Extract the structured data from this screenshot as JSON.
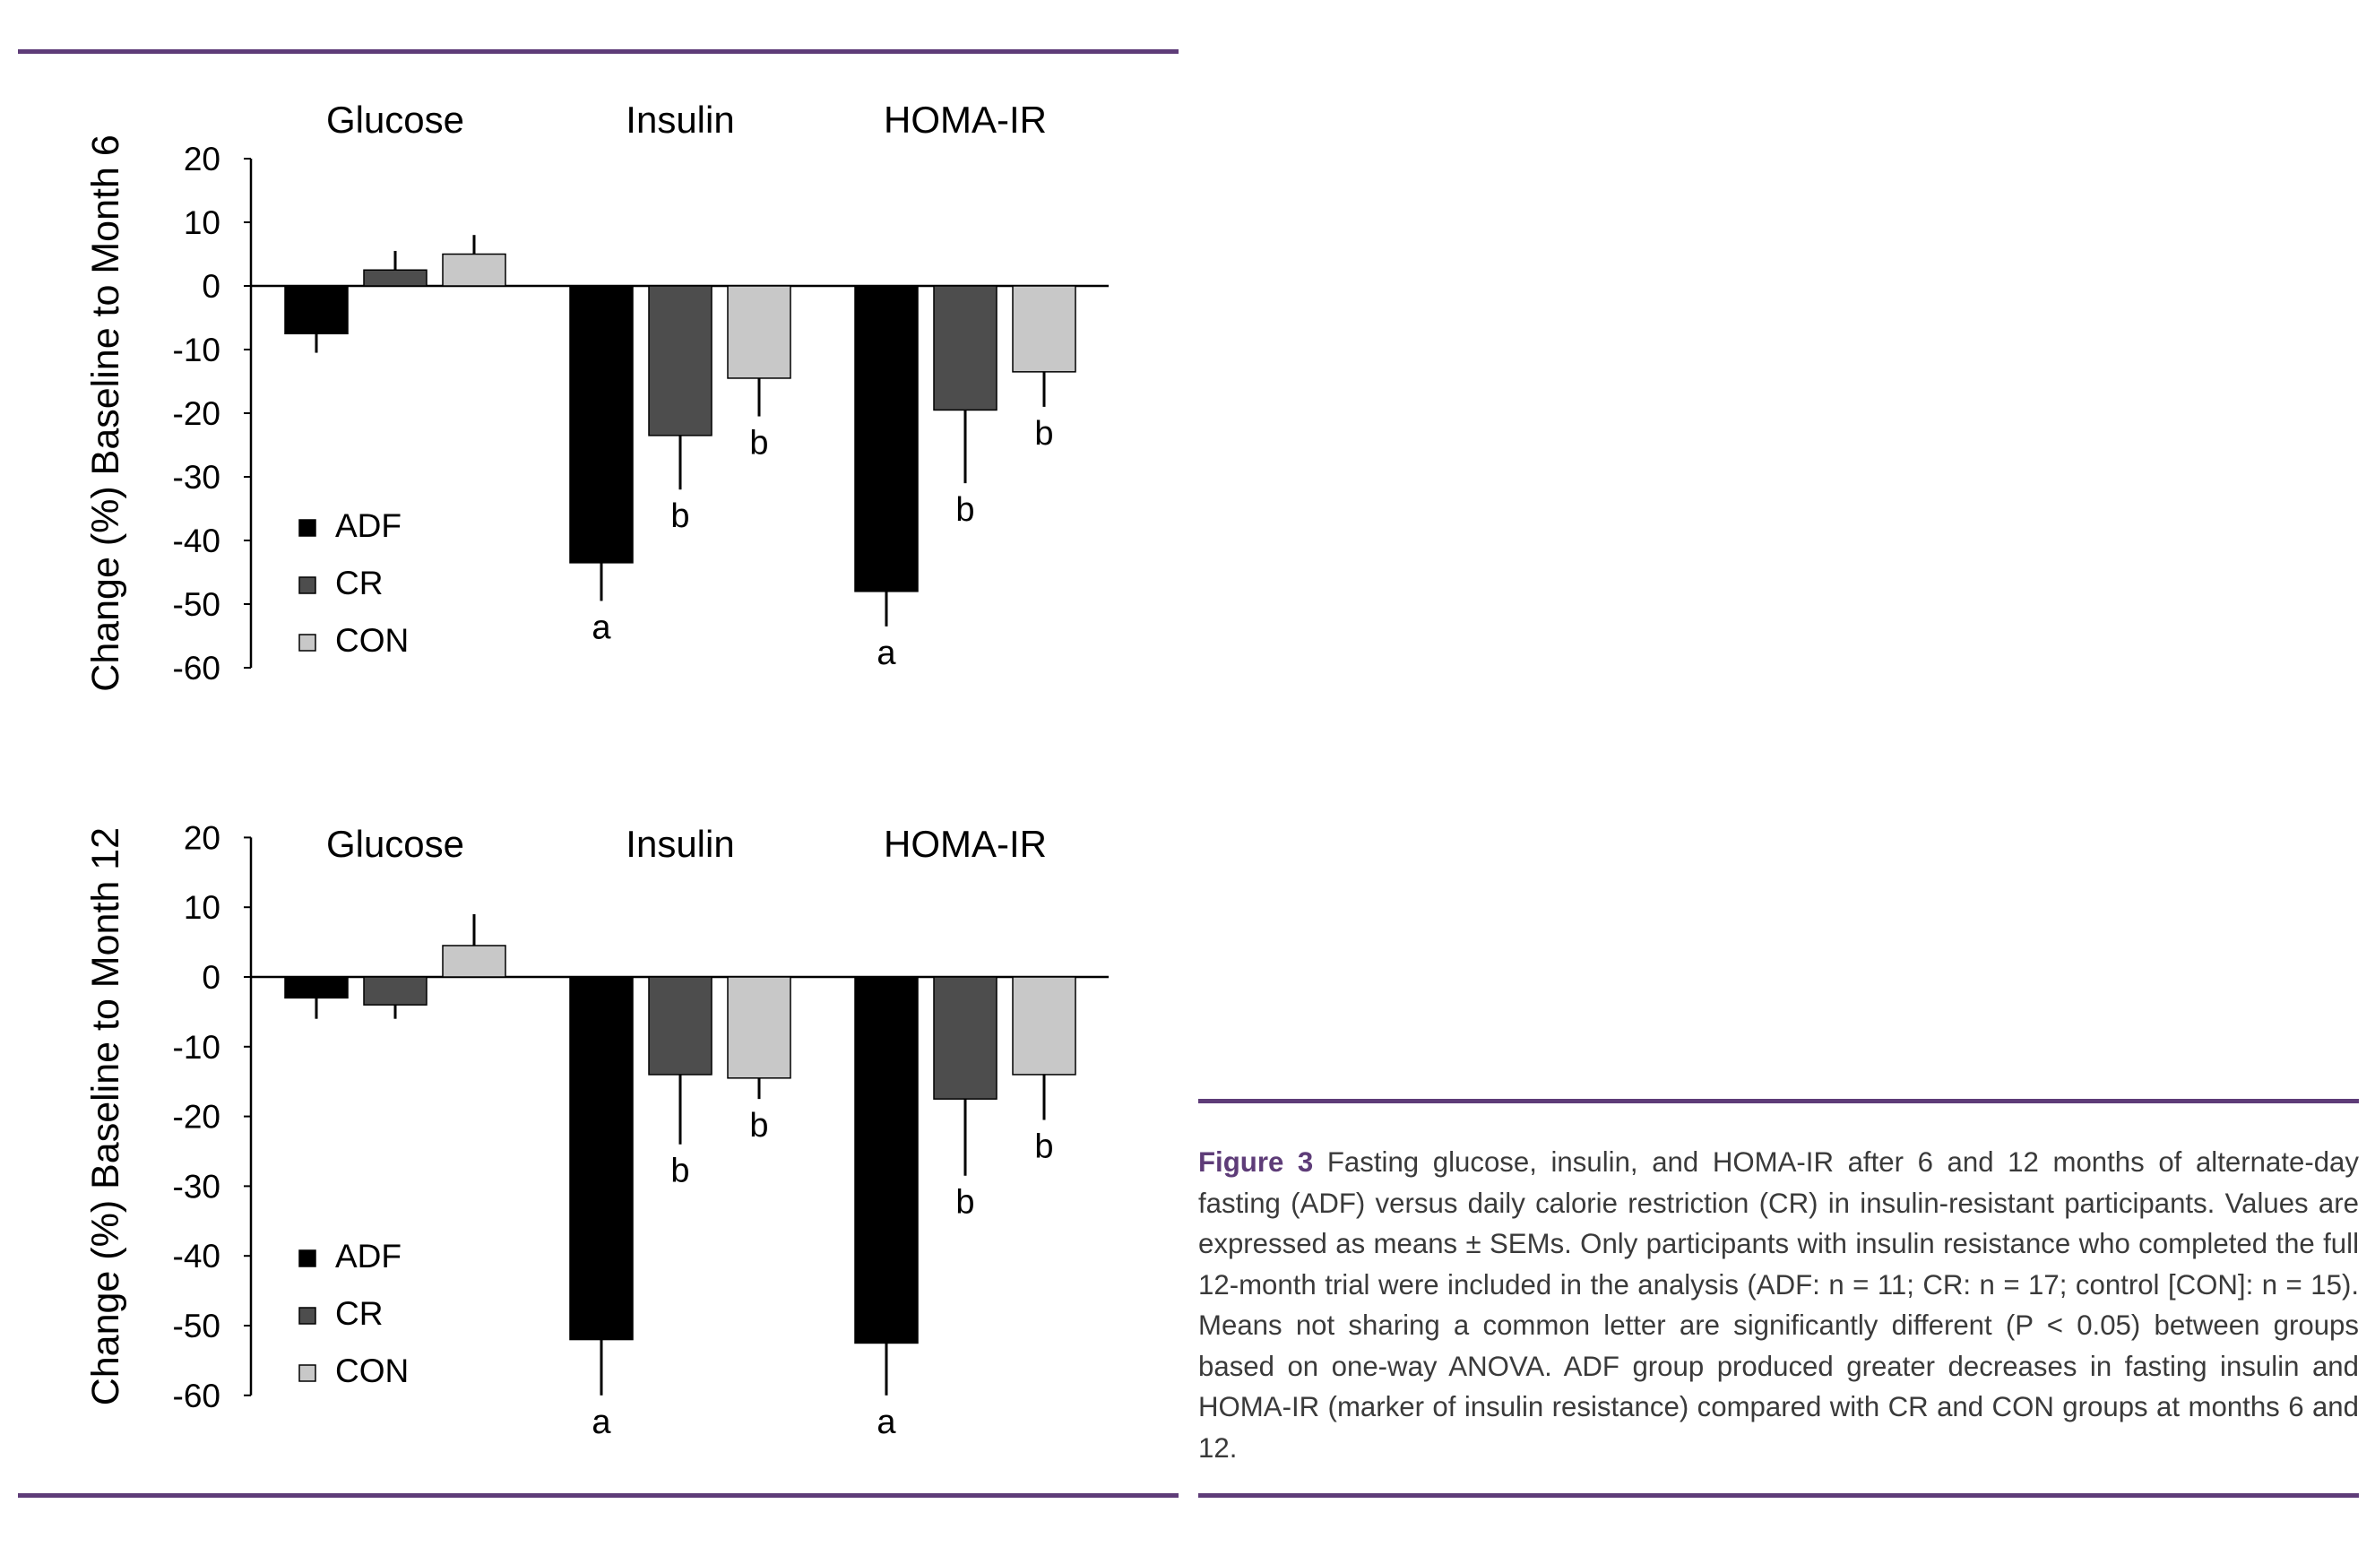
{
  "colors": {
    "rule": "#5e3c78",
    "caption_label": "#5e3c78",
    "caption_text": "#3a3a3a",
    "ADF": "#000000",
    "CR": "#4d4d4d",
    "CON": "#c8c8c8"
  },
  "chart_data": [
    {
      "type": "bar",
      "ylabel": "Change (%) Baseline to Month 6",
      "ylim": [
        -60,
        20
      ],
      "yticks": [
        "20",
        "10",
        "0",
        "-10",
        "-20",
        "-30",
        "-40",
        "-50",
        "-60"
      ],
      "categories": [
        "Glucose",
        "Insulin",
        "HOMA-IR"
      ],
      "legend": {
        "position": "bottom-left"
      },
      "series": [
        {
          "name": "ADF",
          "values": [
            -7.5,
            -43.5,
            -48
          ],
          "sem": [
            3,
            6,
            5.5
          ],
          "letters": [
            "",
            "a",
            "a"
          ]
        },
        {
          "name": "CR",
          "values": [
            2.5,
            -23.5,
            -19.5
          ],
          "sem": [
            3,
            8.5,
            11.5
          ],
          "letters": [
            "",
            "b",
            "b"
          ]
        },
        {
          "name": "CON",
          "values": [
            5,
            -14.5,
            -13.5
          ],
          "sem": [
            3,
            6,
            5.5
          ],
          "letters": [
            "",
            "b",
            "b"
          ]
        }
      ]
    },
    {
      "type": "bar",
      "ylabel": "Change (%) Baseline to Month 12",
      "ylim": [
        -60,
        20
      ],
      "yticks": [
        "20",
        "10",
        "0",
        "-10",
        "-20",
        "-30",
        "-40",
        "-50",
        "-60"
      ],
      "categories": [
        "Glucose",
        "Insulin",
        "HOMA-IR"
      ],
      "legend": {
        "position": "bottom-left"
      },
      "series": [
        {
          "name": "ADF",
          "values": [
            -3,
            -52,
            -52.5
          ],
          "sem": [
            3,
            8,
            7.5
          ],
          "letters": [
            "",
            "a",
            "a"
          ]
        },
        {
          "name": "CR",
          "values": [
            -4,
            -14,
            -17.5
          ],
          "sem": [
            2,
            10,
            11
          ],
          "letters": [
            "",
            "b",
            "b"
          ]
        },
        {
          "name": "CON",
          "values": [
            4.5,
            -14.5,
            -14
          ],
          "sem": [
            4.5,
            3,
            6.5
          ],
          "letters": [
            "",
            "b",
            "b"
          ]
        }
      ]
    }
  ],
  "caption": {
    "label": "Figure 3",
    "text": "Fasting glucose, insulin, and HOMA-IR after 6 and 12 months of alternate-day fasting (ADF) versus daily calorie restriction (CR) in insulin-resistant participants. Values are expressed as means ± SEMs. Only participants with insulin resistance who completed the full 12-month trial were included in the analysis (ADF: n = 11; CR: n = 17; control [CON]: n = 15). Means not sharing a common letter are significantly different (P < 0.05) between groups based on one-way ANOVA. ADF group produced greater decreases in fasting insulin and HOMA-IR (marker of insulin resistance) compared with CR and CON groups at months 6 and 12."
  }
}
